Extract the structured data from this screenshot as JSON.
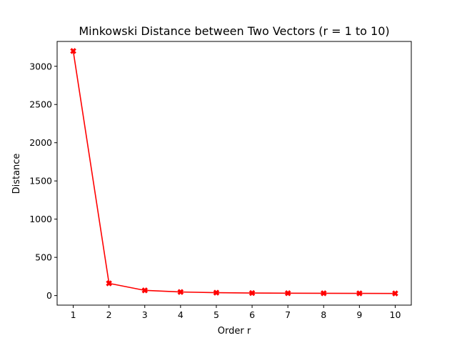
{
  "chart_data": {
    "type": "line",
    "title": "Minkowski Distance between Two Vectors (r = 1 to 10)",
    "xlabel": "Order r",
    "ylabel": "Distance",
    "x": [
      1,
      2,
      3,
      4,
      5,
      6,
      7,
      8,
      9,
      10
    ],
    "series": [
      {
        "values": [
          3200,
          160,
          68,
          47,
          38,
          33,
          31,
          30,
          29,
          28
        ],
        "color": "#ff0000",
        "marker": "X"
      }
    ],
    "xlim": [
      0.55,
      10.45
    ],
    "ylim": [
      -125,
      3325
    ],
    "x_ticks": [
      1,
      2,
      3,
      4,
      5,
      6,
      7,
      8,
      9,
      10
    ],
    "y_ticks": [
      0,
      500,
      1000,
      1500,
      2000,
      2500,
      3000
    ],
    "grid": false,
    "legend": false
  }
}
